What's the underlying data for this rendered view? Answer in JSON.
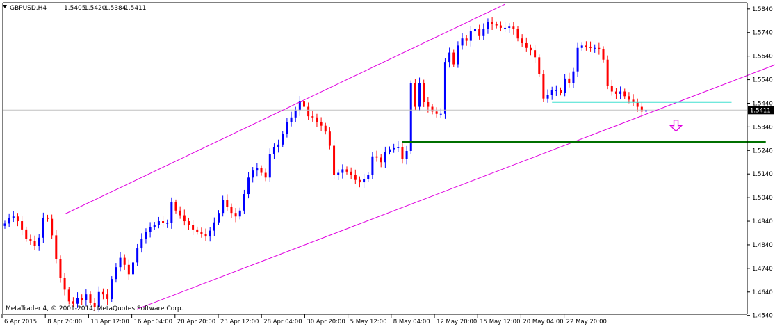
{
  "header": {
    "symbol": "GBPUSD,H4",
    "open": "1.5405",
    "high": "1.5420",
    "low": "1.5384",
    "close": "1.5411"
  },
  "footer": {
    "copyright": "MetaTrader 4, © 2001-2014, MetaQuotes Software Corp."
  },
  "colors": {
    "bull": "#0000ff",
    "bear": "#ff0000",
    "channel": "#e000e0",
    "support": "#007000",
    "resistance": "#40e0d0",
    "current_price_line": "#c0c0c0",
    "arrow": "#e000e0"
  },
  "chart_data": {
    "type": "candlestick",
    "symbol": "GBPUSD",
    "timeframe": "H4",
    "ylim": [
      1.4545,
      1.5866
    ],
    "y_ticks": [
      "1.5840",
      "1.5740",
      "1.5640",
      "1.5540",
      "1.5440",
      "1.5340",
      "1.5240",
      "1.5140",
      "1.5040",
      "1.4940",
      "1.4840",
      "1.4740",
      "1.4640",
      "1.4540"
    ],
    "x_ticks": [
      "6 Apr 2015",
      "8 Apr 20:00",
      "13 Apr 12:00",
      "16 Apr 04:00",
      "20 Apr 20:00",
      "23 Apr 12:00",
      "28 Apr 04:00",
      "30 Apr 20:00",
      "5 May 12:00",
      "8 May 04:00",
      "12 May 20:00",
      "15 May 12:00",
      "20 May 04:00",
      "22 May 20:00"
    ],
    "current_price": "1.5411",
    "closes": [
      1.493,
      1.4955,
      1.496,
      1.494,
      1.4905,
      1.4865,
      1.4855,
      1.4835,
      1.487,
      1.4955,
      1.495,
      1.488,
      1.478,
      1.47,
      1.465,
      1.46,
      1.459,
      1.4615,
      1.4605,
      1.463,
      1.4595,
      1.4575,
      1.464,
      1.463,
      1.461,
      1.4695,
      1.4745,
      1.4785,
      1.4755,
      1.4715,
      1.4765,
      1.4825,
      1.4865,
      1.4895,
      1.4915,
      1.4925,
      1.494,
      1.4932,
      1.4932,
      1.502,
      1.4985,
      1.4965,
      1.494,
      1.4925,
      1.4905,
      1.4895,
      1.4885,
      1.4875,
      1.49,
      1.4935,
      1.4975,
      1.503,
      1.5,
      1.4975,
      1.496,
      1.4985,
      1.5055,
      1.5125,
      1.5155,
      1.5165,
      1.5145,
      1.5125,
      1.5225,
      1.5255,
      1.5265,
      1.531,
      1.536,
      1.538,
      1.541,
      1.545,
      1.5425,
      1.5385,
      1.538,
      1.536,
      1.5345,
      1.532,
      1.526,
      1.5135,
      1.5145,
      1.516,
      1.515,
      1.5135,
      1.5115,
      1.5105,
      1.512,
      1.5135,
      1.5215,
      1.521,
      1.519,
      1.5235,
      1.5245,
      1.525,
      1.5255,
      1.5205,
      1.5238,
      1.5525,
      1.5425,
      1.5525,
      1.5445,
      1.5425,
      1.5405,
      1.5395,
      1.5395,
      1.5615,
      1.5655,
      1.5605,
      1.5685,
      1.5715,
      1.5705,
      1.5745,
      1.5755,
      1.5725,
      1.5755,
      1.5785,
      1.5775,
      1.577,
      1.576,
      1.576,
      1.5765,
      1.5755,
      1.5715,
      1.5695,
      1.5675,
      1.5665,
      1.5635,
      1.5565,
      1.546,
      1.5475,
      1.5495,
      1.5495,
      1.5485,
      1.5545,
      1.5525,
      1.5575,
      1.5675,
      1.5685,
      1.5678,
      1.5675,
      1.5675,
      1.567,
      1.5625,
      1.5515,
      1.549,
      1.548,
      1.549,
      1.547,
      1.5455,
      1.5445,
      1.5425,
      1.5405,
      1.5411
    ],
    "channel_upper": [
      {
        "t": 14,
        "price": 1.497
      },
      {
        "t": 117,
        "price": 1.586
      }
    ],
    "channel_lower": [
      {
        "t": 31,
        "price": 1.4568
      },
      {
        "t": 210,
        "price": 1.581
      }
    ],
    "support_level": {
      "price": 1.5275,
      "t_start": 93,
      "t_end": 178
    },
    "resistance_level": {
      "price": 1.5445,
      "t_start": 128,
      "t_end": 170
    },
    "arrow": {
      "direction": "down",
      "t": 157,
      "price": 1.5345
    }
  }
}
